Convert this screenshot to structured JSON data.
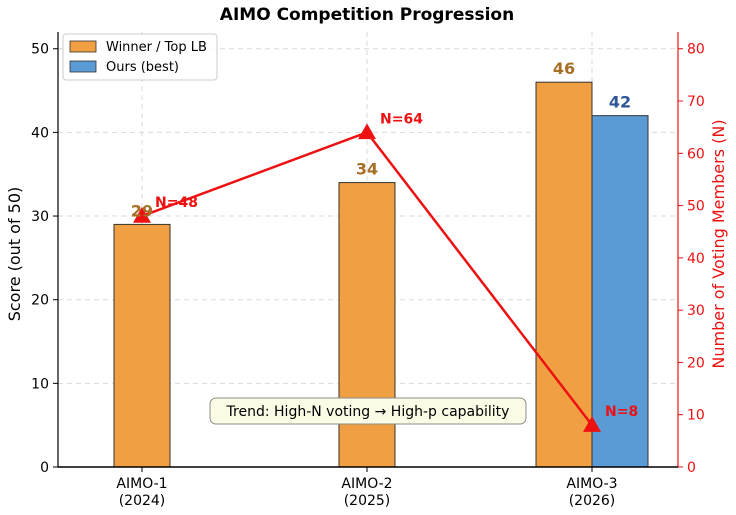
{
  "chart_data": {
    "type": "bar",
    "title": "AIMO Competition Progression",
    "categories": [
      {
        "line1": "AIMO-1",
        "line2": "(2024)"
      },
      {
        "line1": "AIMO-2",
        "line2": "(2025)"
      },
      {
        "line1": "AIMO-3",
        "line2": "(2026)"
      }
    ],
    "series": [
      {
        "name": "Winner / Top LB",
        "values": [
          29,
          34,
          46
        ],
        "color": "#f0a042",
        "label_color": "#a86f26"
      },
      {
        "name": "Ours (best)",
        "values": [
          null,
          null,
          42
        ],
        "color": "#5b9bd5",
        "label_color": "#2f5597"
      }
    ],
    "ylabel": "Score (out of 50)",
    "ylim": [
      0,
      52
    ],
    "yticks": [
      0,
      10,
      20,
      30,
      40,
      50
    ],
    "secondary_axis": {
      "ylabel": "Number of Voting Members (N)",
      "ylim": [
        0,
        83.2
      ],
      "yticks": [
        0,
        10,
        20,
        30,
        40,
        50,
        60,
        70,
        80
      ],
      "color": "#ee1111",
      "values": [
        48,
        64,
        8
      ],
      "point_labels": [
        "N=48",
        "N=64",
        "N=8"
      ]
    },
    "annotation": "Trend: High-N voting → High-p capability",
    "legend_position": "top-left",
    "grid": true
  }
}
